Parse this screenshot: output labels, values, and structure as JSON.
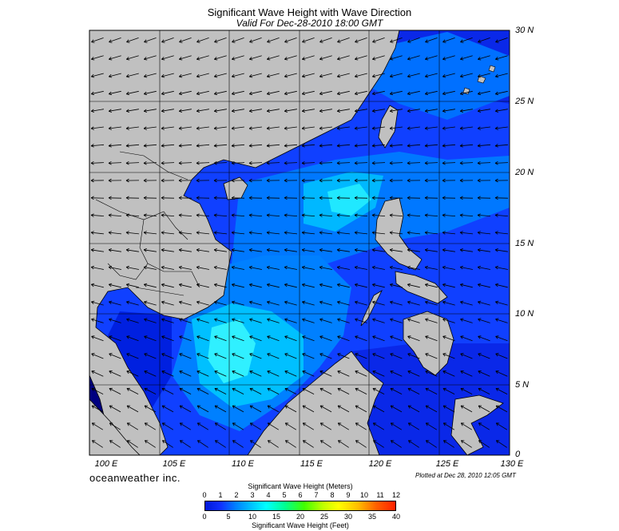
{
  "header": {
    "title": "Significant Wave Height with Wave Direction",
    "subtitle": "Valid For Dec-28-2010 18:00 GMT"
  },
  "axes": {
    "lat_labels": [
      "30 N",
      "25 N",
      "20 N",
      "15 N",
      "10 N",
      "5 N",
      "0"
    ],
    "lat_values": [
      30,
      25,
      20,
      15,
      10,
      5,
      0
    ],
    "lon_labels": [
      "100 E",
      "105 E",
      "110 E",
      "115 E",
      "120 E",
      "125 E",
      "130 E"
    ],
    "lon_values": [
      100,
      105,
      110,
      115,
      120,
      125,
      130
    ]
  },
  "footer": {
    "brand": "oceanweather inc.",
    "plotted": "Plotted at Dec 28, 2010 12:05 GMT"
  },
  "colorbar": {
    "title_top": "Significant Wave Height (Meters)",
    "meters_ticks": [
      "0",
      "1",
      "2",
      "3",
      "4",
      "5",
      "6",
      "7",
      "8",
      "9",
      "10",
      "11",
      "12"
    ],
    "feet_ticks": [
      "0",
      "5",
      "10",
      "15",
      "20",
      "25",
      "30",
      "35",
      "40"
    ],
    "title_bottom": "Significant Wave Height (Feet)"
  },
  "colors": {
    "land": "#c0c0c0",
    "sea_dark": "#0018d8",
    "sea_blue": "#1040ff",
    "sea_mid": "#0080ff",
    "sea_cyan": "#00c8ff",
    "sea_light": "#20e8ff"
  },
  "chart_data": {
    "type": "heatmap",
    "title": "Significant Wave Height with Wave Direction",
    "subtitle": "Valid For Dec-28-2010 18:00 GMT",
    "x_range": [
      100,
      130
    ],
    "y_range": [
      0,
      30
    ],
    "colorbar_range_m": [
      0,
      12
    ],
    "colorbar_range_ft": [
      0,
      40
    ],
    "wave_direction_general": "from northeast toward southwest"
  }
}
